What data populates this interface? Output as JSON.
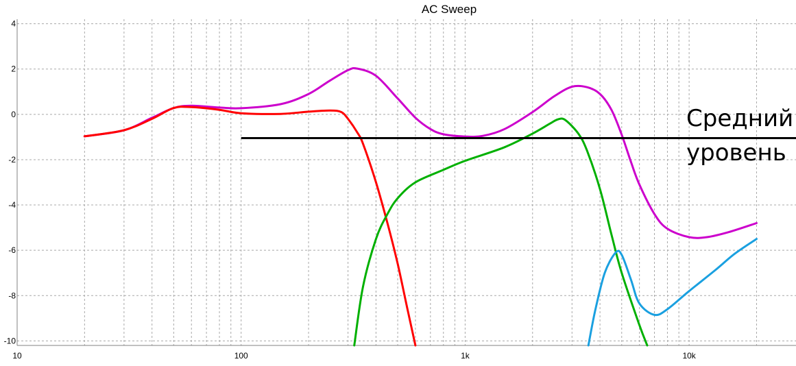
{
  "chart_data": {
    "type": "line",
    "title": "AC Sweep",
    "xlabel": "",
    "ylabel": "",
    "x_scale": "log",
    "xlim": [
      10,
      30000
    ],
    "ylim": [
      -10.2,
      4.2
    ],
    "grid": true,
    "x_tick_labels": [
      {
        "value": 10,
        "label": "10"
      },
      {
        "value": 100,
        "label": "100"
      },
      {
        "value": 1000,
        "label": "1k"
      },
      {
        "value": 10000,
        "label": "10k"
      }
    ],
    "y_tick_labels": [
      {
        "value": 4,
        "label": "4"
      },
      {
        "value": 2,
        "label": "2"
      },
      {
        "value": 0,
        "label": "0"
      },
      {
        "value": -2,
        "label": "-2"
      },
      {
        "value": -4,
        "label": "-4"
      },
      {
        "value": -6,
        "label": "-6"
      },
      {
        "value": -8,
        "label": "-8"
      },
      {
        "value": -10,
        "label": "-10"
      }
    ],
    "series": [
      {
        "color": "#cc00cc",
        "points": [
          [
            20,
            -0.97
          ],
          [
            30,
            -0.7
          ],
          [
            40,
            -0.15
          ],
          [
            50,
            0.28
          ],
          [
            60,
            0.38
          ],
          [
            80,
            0.3
          ],
          [
            100,
            0.27
          ],
          [
            150,
            0.45
          ],
          [
            200,
            0.9
          ],
          [
            250,
            1.5
          ],
          [
            300,
            1.95
          ],
          [
            330,
            2.02
          ],
          [
            400,
            1.7
          ],
          [
            500,
            0.7
          ],
          [
            600,
            -0.15
          ],
          [
            700,
            -0.65
          ],
          [
            800,
            -0.88
          ],
          [
            1000,
            -0.98
          ],
          [
            1200,
            -0.95
          ],
          [
            1500,
            -0.65
          ],
          [
            2000,
            0.1
          ],
          [
            2500,
            0.8
          ],
          [
            3000,
            1.22
          ],
          [
            3500,
            1.2
          ],
          [
            4000,
            0.9
          ],
          [
            4500,
            0.2
          ],
          [
            5000,
            -0.9
          ],
          [
            5500,
            -2.1
          ],
          [
            6000,
            -3.1
          ],
          [
            7000,
            -4.4
          ],
          [
            8000,
            -5.05
          ],
          [
            10000,
            -5.42
          ],
          [
            12000,
            -5.42
          ],
          [
            15000,
            -5.2
          ],
          [
            20000,
            -4.8
          ]
        ]
      },
      {
        "color": "#ff0000",
        "points": [
          [
            20,
            -0.97
          ],
          [
            30,
            -0.7
          ],
          [
            40,
            -0.2
          ],
          [
            50,
            0.28
          ],
          [
            60,
            0.32
          ],
          [
            80,
            0.2
          ],
          [
            100,
            0.05
          ],
          [
            150,
            0.02
          ],
          [
            200,
            0.12
          ],
          [
            250,
            0.17
          ],
          [
            280,
            0.1
          ],
          [
            300,
            -0.2
          ],
          [
            330,
            -0.8
          ],
          [
            350,
            -1.3
          ],
          [
            400,
            -3.0
          ],
          [
            450,
            -4.8
          ],
          [
            500,
            -6.6
          ],
          [
            550,
            -8.5
          ],
          [
            600,
            -10.2
          ]
        ]
      },
      {
        "color": "#00b000",
        "points": [
          [
            320,
            -10.2
          ],
          [
            350,
            -7.6
          ],
          [
            400,
            -5.5
          ],
          [
            450,
            -4.4
          ],
          [
            500,
            -3.7
          ],
          [
            600,
            -3.0
          ],
          [
            800,
            -2.45
          ],
          [
            1000,
            -2.05
          ],
          [
            1500,
            -1.45
          ],
          [
            2000,
            -0.85
          ],
          [
            2400,
            -0.4
          ],
          [
            2600,
            -0.22
          ],
          [
            2800,
            -0.25
          ],
          [
            3200,
            -0.85
          ],
          [
            3500,
            -1.6
          ],
          [
            4000,
            -3.3
          ],
          [
            4500,
            -5.3
          ],
          [
            5000,
            -7.0
          ],
          [
            6000,
            -9.3
          ],
          [
            6500,
            -10.2
          ]
        ]
      },
      {
        "color": "#1aa0e0",
        "points": [
          [
            3550,
            -10.2
          ],
          [
            3800,
            -8.7
          ],
          [
            4200,
            -7.0
          ],
          [
            4700,
            -6.1
          ],
          [
            5000,
            -6.2
          ],
          [
            5500,
            -7.3
          ],
          [
            6000,
            -8.35
          ],
          [
            7000,
            -8.85
          ],
          [
            8000,
            -8.6
          ],
          [
            10000,
            -7.8
          ],
          [
            13000,
            -6.9
          ],
          [
            16000,
            -6.15
          ],
          [
            20000,
            -5.5
          ]
        ]
      }
    ],
    "reference_line": {
      "color": "#000000",
      "x_range": [
        100,
        30000
      ],
      "y": -1.05
    },
    "annotation": {
      "lines": [
        "Средний",
        "уровень"
      ]
    }
  }
}
